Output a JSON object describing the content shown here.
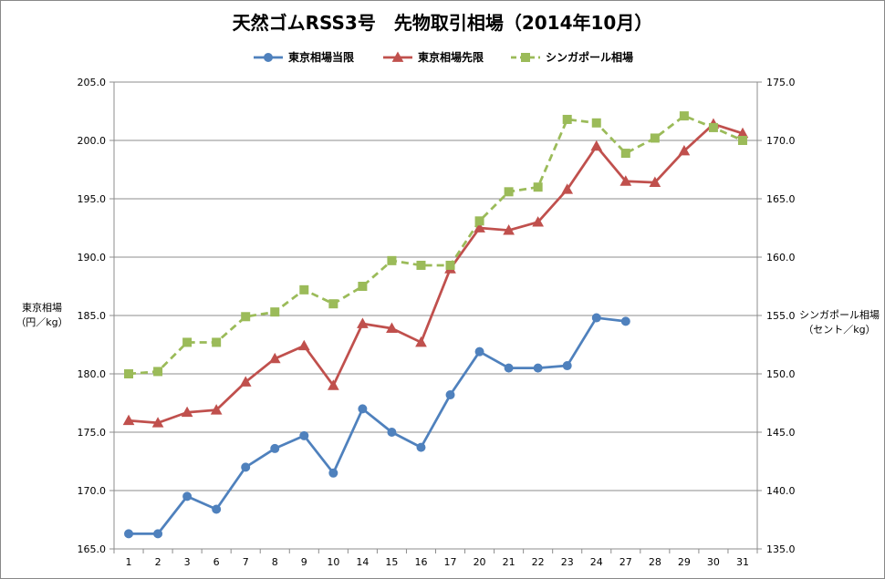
{
  "chart_data": {
    "type": "line",
    "title": "天然ゴムRSS3号　先物取引相場（2014年10月）",
    "categories": [
      "1",
      "2",
      "3",
      "6",
      "7",
      "8",
      "9",
      "10",
      "14",
      "15",
      "16",
      "17",
      "20",
      "21",
      "22",
      "23",
      "24",
      "27",
      "28",
      "29",
      "30",
      "31"
    ],
    "ylabel_left": [
      "東京相場",
      "（円／kg）"
    ],
    "ylabel_right": [
      "シンガポール相場",
      "（セント／kg）"
    ],
    "ylim_left": [
      165.0,
      205.0
    ],
    "ylim_right": [
      135.0,
      175.0
    ],
    "yticks_left": [
      "165.0",
      "170.0",
      "175.0",
      "180.0",
      "185.0",
      "190.0",
      "195.0",
      "200.0",
      "205.0"
    ],
    "yticks_right": [
      "135.0",
      "140.0",
      "145.0",
      "150.0",
      "155.0",
      "160.0",
      "165.0",
      "170.0",
      "175.0"
    ],
    "grid": true,
    "legend_position": "top",
    "series": [
      {
        "name": "東京相場当限",
        "axis": "left",
        "color": "#4f81bd",
        "marker": "circle",
        "dashed": false,
        "values": [
          166.3,
          166.3,
          169.5,
          168.4,
          172.0,
          173.6,
          174.7,
          171.5,
          177.0,
          175.0,
          173.7,
          178.2,
          181.9,
          180.5,
          180.5,
          180.7,
          184.8,
          184.5,
          null,
          null,
          null,
          null
        ]
      },
      {
        "name": "東京相場先限",
        "axis": "left",
        "color": "#c0504d",
        "marker": "triangle",
        "dashed": false,
        "values": [
          176.0,
          175.8,
          176.7,
          176.9,
          179.3,
          181.3,
          182.4,
          179.0,
          184.3,
          183.9,
          182.7,
          189.0,
          192.5,
          192.3,
          193.0,
          195.8,
          199.5,
          196.5,
          196.4,
          199.1,
          201.4,
          200.6
        ]
      },
      {
        "name": "シンガポール相場",
        "axis": "right",
        "color": "#9bbb59",
        "marker": "square",
        "dashed": true,
        "values": [
          150.0,
          150.2,
          152.7,
          152.7,
          154.9,
          155.3,
          157.2,
          156.0,
          157.5,
          159.7,
          159.3,
          159.3,
          163.1,
          165.6,
          166.0,
          171.8,
          171.5,
          168.9,
          170.2,
          172.1,
          171.1,
          170.0
        ]
      }
    ]
  }
}
